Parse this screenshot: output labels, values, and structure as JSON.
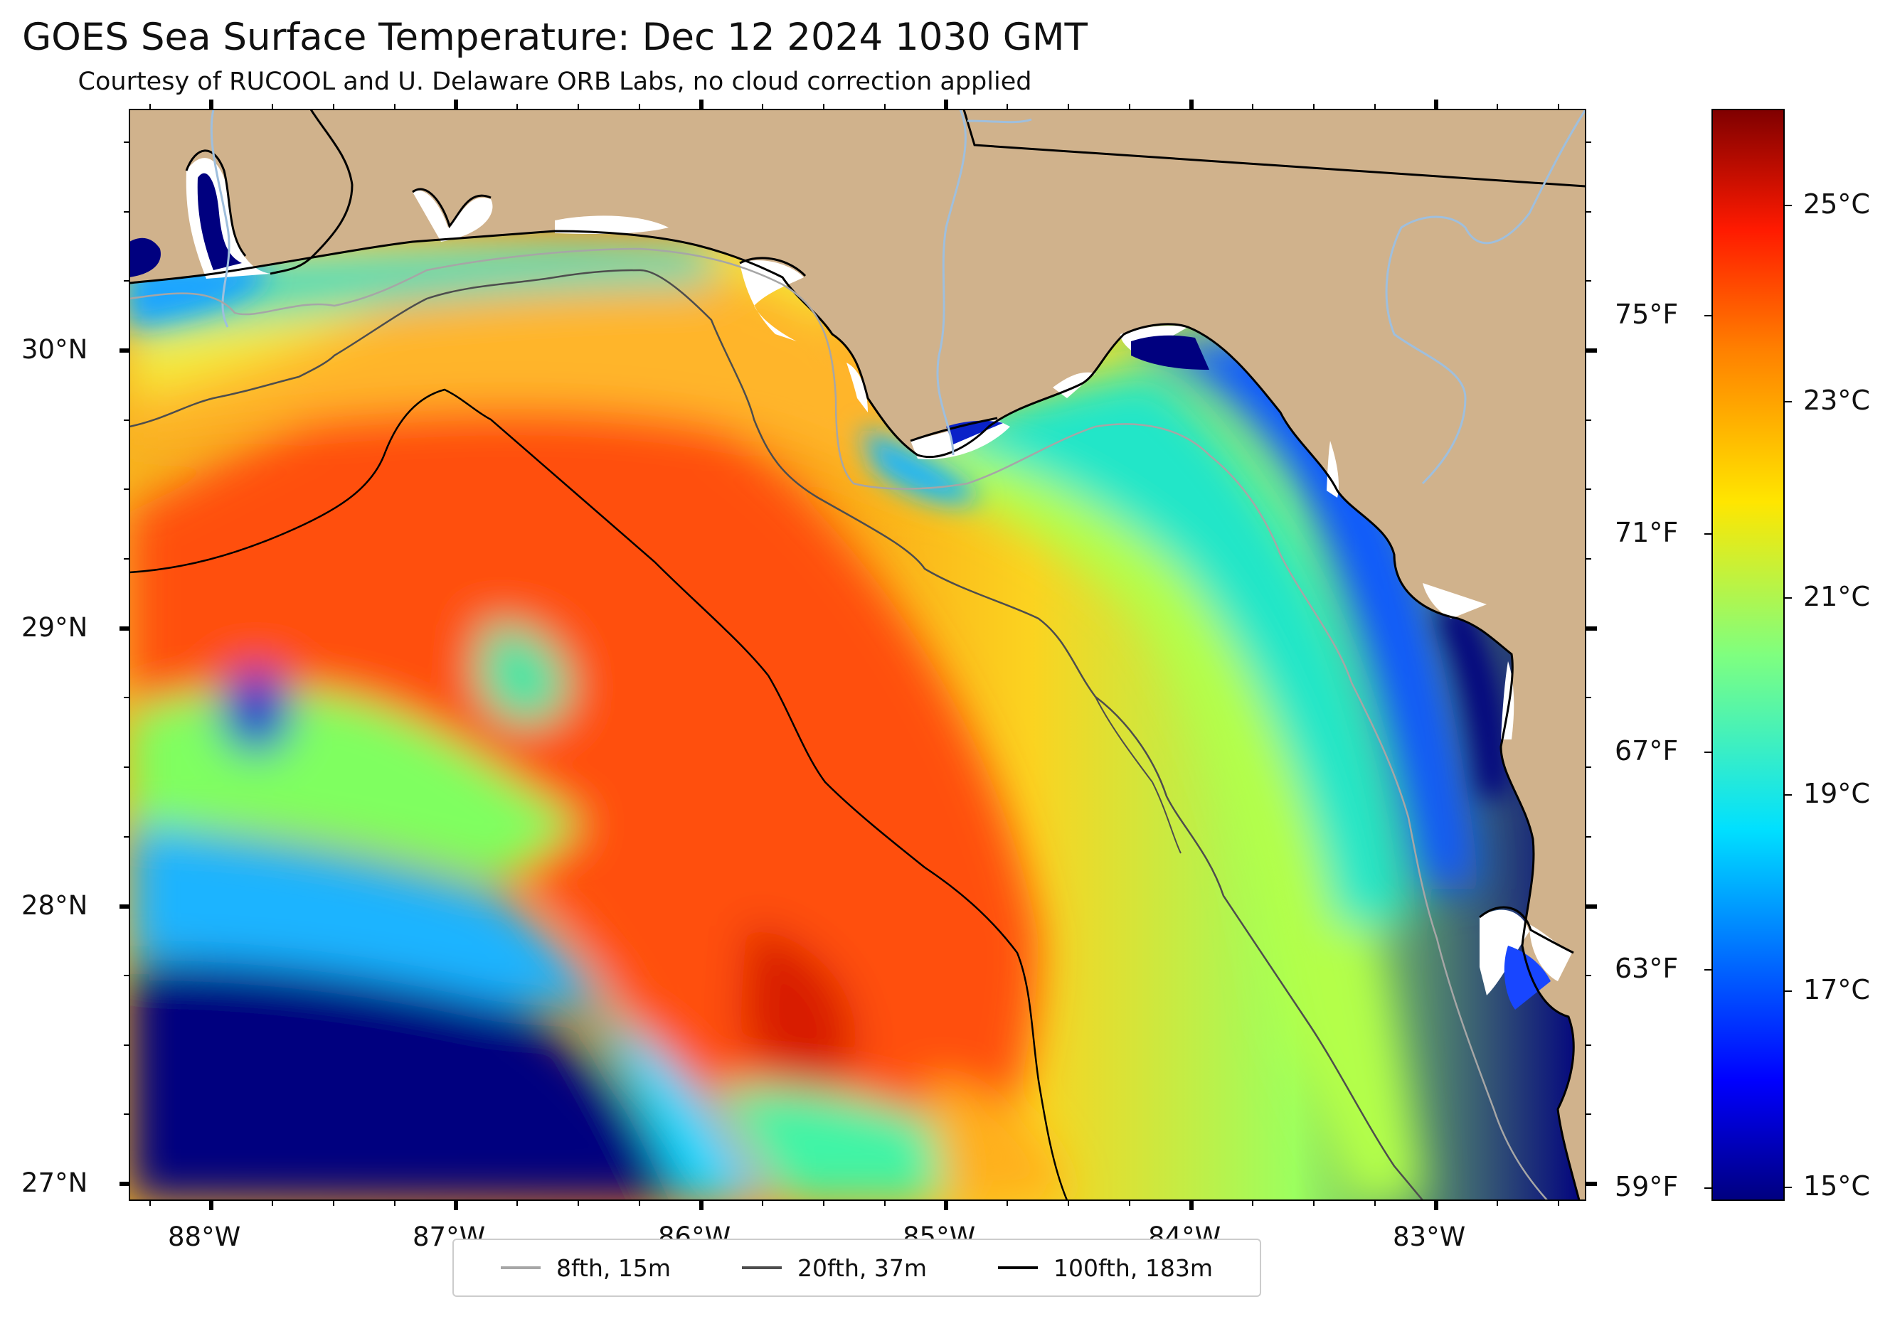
{
  "title": "GOES Sea Surface Temperature: Dec 12 2024 1030 GMT",
  "subtitle": "Courtesy of RUCOOL and U. Delaware ORB Labs, no cloud correction applied",
  "map": {
    "extent": {
      "lon": [
        -88.33,
        -82.37
      ],
      "lat": [
        26.93,
        30.85
      ]
    },
    "land_color": "#d0b28c",
    "lat_ticks": [
      "30°N",
      "29°N",
      "28°N",
      "27°N"
    ],
    "lon_ticks": [
      "88°W",
      "87°W",
      "86°W",
      "85°W",
      "84°W",
      "83°W"
    ],
    "fahrenheit_ticks": [
      "75°F",
      "71°F",
      "67°F",
      "63°F",
      "59°F"
    ]
  },
  "colorbar": {
    "colormap": "jet",
    "range_c": [
      14.8,
      26.1
    ],
    "celsius_ticks": [
      "25°C",
      "23°C",
      "21°C",
      "19°C",
      "17°C",
      "15°C"
    ]
  },
  "legend": {
    "items": [
      {
        "label": "8fth, 15m",
        "color": "#a6a6a6"
      },
      {
        "label": "20fth, 37m",
        "color": "#4d4d4d"
      },
      {
        "label": "100fth, 183m",
        "color": "#000000"
      }
    ]
  }
}
